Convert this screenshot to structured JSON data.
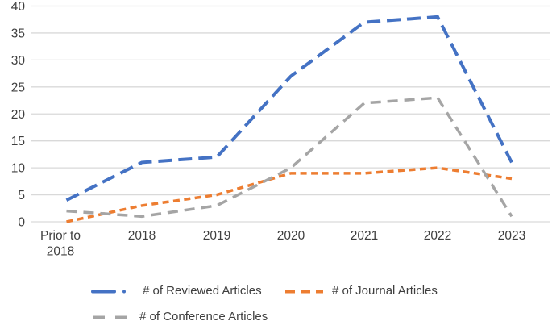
{
  "chart_data": {
    "type": "line",
    "title": "",
    "xlabel": "",
    "ylabel": "",
    "categories": [
      "Prior to 2018",
      "2018",
      "2019",
      "2020",
      "2021",
      "2022",
      "2023"
    ],
    "x_label_lines": [
      [
        "Prior to",
        "2018"
      ],
      [
        "2018"
      ],
      [
        "2019"
      ],
      [
        "2020"
      ],
      [
        "2021"
      ],
      [
        "2022"
      ],
      [
        "2023"
      ]
    ],
    "yticks": [
      0,
      5,
      10,
      15,
      20,
      25,
      30,
      35,
      40
    ],
    "ylim": [
      0,
      40
    ],
    "grid": true,
    "gridline_color": "#d9d9d9",
    "text_color": "#3f3f3f",
    "background": "#ffffff",
    "legend_position": "bottom",
    "series": [
      {
        "name": "# of Reviewed Articles",
        "color": "#4472c4",
        "dash_style": "long-dash-dot",
        "values": [
          4,
          11,
          12,
          27,
          37,
          38,
          11
        ]
      },
      {
        "name": "# of Journal Articles",
        "color": "#ed7d31",
        "dash_style": "dash",
        "values": [
          0,
          3,
          5,
          9,
          9,
          10,
          8
        ]
      },
      {
        "name": "# of Conference Articles",
        "color": "#a5a5a5",
        "dash_style": "dash",
        "values": [
          2,
          1,
          3,
          10,
          22,
          23,
          1
        ]
      }
    ]
  }
}
